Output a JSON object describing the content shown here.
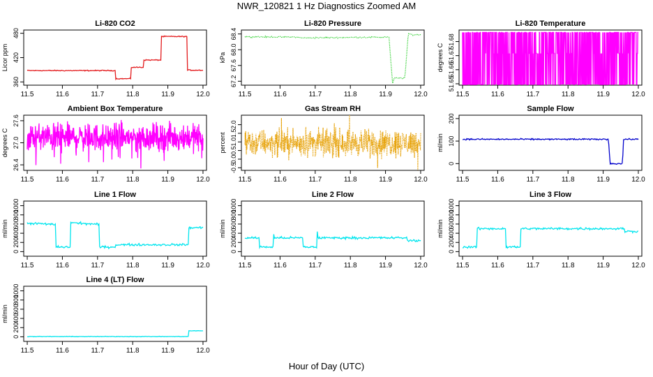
{
  "figure": {
    "title": "NWR_120821  1 Hz Diagnostics Zoomed AM",
    "xlabel": "Hour of Day (UTC)"
  },
  "chart_data": [
    {
      "type": "line",
      "title": "Li-820 CO2",
      "ylabel": "Licor ppm",
      "xlim": [
        11.49,
        12.01
      ],
      "ylim": [
        352,
        488
      ],
      "x_ticks": [
        11.5,
        11.6,
        11.7,
        11.8,
        11.9,
        12.0
      ],
      "x_tick_labels": [
        "11.5",
        "11.6",
        "11.7",
        "11.8",
        "11.9",
        "12.0"
      ],
      "y_ticks": [
        360,
        420,
        480
      ],
      "y_tick_labels": [
        "360",
        "420",
        "480"
      ],
      "color": "#e31a1c",
      "noise": 0.6,
      "step": 0.002,
      "render": "line",
      "series": [
        {
          "x": [
            11.5,
            11.75,
            11.751,
            11.795,
            11.796,
            11.83,
            11.831,
            11.88,
            11.881,
            11.955,
            11.956,
            12.0
          ],
          "y": [
            388,
            388,
            368,
            368,
            396,
            396,
            414,
            414,
            472,
            472,
            389,
            389
          ]
        }
      ]
    },
    {
      "type": "line",
      "title": "Li-820 Pressure",
      "ylabel": "kPa",
      "xlim": [
        11.49,
        12.01
      ],
      "ylim": [
        67.1,
        68.5
      ],
      "x_ticks": [
        11.5,
        11.6,
        11.7,
        11.8,
        11.9,
        12.0
      ],
      "x_tick_labels": [
        "11.5",
        "11.6",
        "11.7",
        "11.8",
        "11.9",
        "12.0"
      ],
      "y_ticks": [
        67.2,
        67.6,
        68.0,
        68.4
      ],
      "y_tick_labels": [
        "67.2",
        "67.6",
        "68.0",
        "68.4"
      ],
      "color": "#22cc22",
      "noise": 0.008,
      "step": 0.002,
      "render": "dots",
      "series": [
        {
          "x": [
            11.5,
            11.65,
            11.66,
            11.91,
            11.92,
            11.925,
            11.927,
            11.955,
            11.965,
            11.975,
            12.0
          ],
          "y": [
            68.33,
            68.32,
            68.3,
            68.32,
            67.15,
            67.28,
            67.28,
            67.28,
            68.41,
            68.38,
            68.38
          ]
        }
      ]
    },
    {
      "type": "line",
      "title": "Li-820 Temperature",
      "ylabel": "degrees C",
      "xlim": [
        11.49,
        12.01
      ],
      "ylim": [
        51.649,
        51.6882
      ],
      "x_ticks": [
        11.5,
        11.6,
        11.7,
        11.8,
        11.9,
        12.0
      ],
      "x_tick_labels": [
        "11.5",
        "11.6",
        "11.7",
        "11.8",
        "11.9",
        "12.0"
      ],
      "y_ticks": [
        51.65,
        51.66,
        51.67,
        51.68
      ],
      "y_tick_labels": [
        "51.65",
        "51.66",
        "51.67",
        "51.68"
      ],
      "color": "#ff00ff",
      "noise": 0,
      "step": 0.0008,
      "render": "toggle",
      "levels": [
        51.6495,
        51.6716,
        51.6865
      ],
      "series": [
        {
          "x": [
            11.5,
            12.0
          ],
          "y": [
            51.6716,
            51.6716
          ]
        }
      ]
    },
    {
      "type": "line",
      "title": "Ambient Box Temperature",
      "ylabel": "degrees C",
      "xlim": [
        11.49,
        12.01
      ],
      "ylim": [
        26.25,
        27.75
      ],
      "x_ticks": [
        11.5,
        11.6,
        11.7,
        11.8,
        11.9,
        12.0
      ],
      "x_tick_labels": [
        "11.5",
        "11.6",
        "11.7",
        "11.8",
        "11.9",
        "12.0"
      ],
      "y_ticks": [
        26.4,
        27.0,
        27.6
      ],
      "y_tick_labels": [
        "26.4",
        "27.0",
        "27.6"
      ],
      "color": "#ff00ff",
      "noise": 0.18,
      "step": 0.0008,
      "render": "line",
      "series": [
        {
          "x": [
            11.5,
            12.0
          ],
          "y": [
            27.15,
            27.15
          ]
        }
      ]
    },
    {
      "type": "scatter",
      "title": "Gas Stream RH",
      "ylabel": "percent",
      "xlim": [
        11.49,
        12.01
      ],
      "ylim": [
        -0.65,
        2.55
      ],
      "x_ticks": [
        11.5,
        11.6,
        11.7,
        11.8,
        11.9,
        12.0
      ],
      "x_tick_labels": [
        "11.5",
        "11.6",
        "11.7",
        "11.8",
        "11.9",
        "12.0"
      ],
      "y_ticks": [
        -0.5,
        0.0,
        0.5,
        1.0,
        1.5,
        2.0
      ],
      "y_tick_labels": [
        "-0.5",
        "0.0",
        "0.5",
        "1.0",
        "1.5",
        "2.0"
      ],
      "color": "#e69f00",
      "noise": 0.38,
      "step": 0.0008,
      "render": "dots",
      "series": [
        {
          "x": [
            11.5,
            12.0
          ],
          "y": [
            0.95,
            0.95
          ]
        }
      ]
    },
    {
      "type": "line",
      "title": "Sample Flow",
      "ylabel": "ml/min",
      "xlim": [
        11.49,
        12.01
      ],
      "ylim": [
        -30,
        215
      ],
      "x_ticks": [
        11.5,
        11.6,
        11.7,
        11.8,
        11.9,
        12.0
      ],
      "x_tick_labels": [
        "11.5",
        "11.6",
        "11.7",
        "11.8",
        "11.9",
        "12.0"
      ],
      "y_ticks": [
        0,
        100,
        200
      ],
      "y_tick_labels": [
        "0",
        "100",
        "200"
      ],
      "color": "#0000cc",
      "noise": 1.5,
      "step": 0.002,
      "render": "line",
      "series": [
        {
          "x": [
            11.5,
            11.915,
            11.92,
            11.955,
            11.958,
            12.0
          ],
          "y": [
            108,
            108,
            0,
            0,
            108,
            108
          ]
        }
      ]
    },
    {
      "type": "line",
      "title": "Line 1 Flow",
      "ylabel": "ml/min",
      "xlim": [
        11.49,
        12.01
      ],
      "ylim": [
        -100,
        1100
      ],
      "x_ticks": [
        11.5,
        11.6,
        11.7,
        11.8,
        11.9,
        12.0
      ],
      "x_tick_labels": [
        "11.5",
        "11.6",
        "11.7",
        "11.8",
        "11.9",
        "12.0"
      ],
      "y_ticks": [
        0,
        200,
        400,
        600,
        800,
        1000
      ],
      "y_tick_labels": [
        "0",
        "200",
        "400",
        "600",
        "800",
        "1000"
      ],
      "color": "#00e5ee",
      "noise": 12,
      "step": 0.002,
      "render": "line",
      "series": [
        {
          "x": [
            11.5,
            11.58,
            11.581,
            11.623,
            11.624,
            11.705,
            11.706,
            11.75,
            11.751,
            11.958,
            11.96,
            12.0
          ],
          "y": [
            620,
            590,
            100,
            100,
            630,
            590,
            100,
            100,
            150,
            150,
            520,
            520
          ]
        }
      ]
    },
    {
      "type": "line",
      "title": "Line 2 Flow",
      "ylabel": "ml/min",
      "xlim": [
        11.49,
        12.01
      ],
      "ylim": [
        -100,
        1100
      ],
      "x_ticks": [
        11.5,
        11.6,
        11.7,
        11.8,
        11.9,
        12.0
      ],
      "x_tick_labels": [
        "11.5",
        "11.6",
        "11.7",
        "11.8",
        "11.9",
        "12.0"
      ],
      "y_ticks": [
        0,
        200,
        400,
        600,
        800,
        1000
      ],
      "y_tick_labels": [
        "0",
        "200",
        "400",
        "600",
        "800",
        "1000"
      ],
      "color": "#00e5ee",
      "noise": 12,
      "step": 0.002,
      "render": "line",
      "series": [
        {
          "x": [
            11.5,
            11.54,
            11.541,
            11.58,
            11.581,
            11.583,
            11.584,
            11.665,
            11.666,
            11.705,
            11.706,
            11.708,
            11.709,
            11.96,
            11.961,
            12.0
          ],
          "y": [
            300,
            300,
            100,
            100,
            420,
            300,
            300,
            300,
            100,
            100,
            420,
            300,
            300,
            300,
            240,
            240
          ]
        }
      ]
    },
    {
      "type": "line",
      "title": "Line 3 Flow",
      "ylabel": "ml/min",
      "xlim": [
        11.49,
        12.01
      ],
      "ylim": [
        -100,
        1100
      ],
      "x_ticks": [
        11.5,
        11.6,
        11.7,
        11.8,
        11.9,
        12.0
      ],
      "x_tick_labels": [
        "11.5",
        "11.6",
        "11.7",
        "11.8",
        "11.9",
        "12.0"
      ],
      "y_ticks": [
        0,
        200,
        400,
        600,
        800,
        1000
      ],
      "y_tick_labels": [
        "0",
        "200",
        "400",
        "600",
        "800",
        "1000"
      ],
      "color": "#00e5ee",
      "noise": 12,
      "step": 0.002,
      "render": "line",
      "series": [
        {
          "x": [
            11.5,
            11.54,
            11.541,
            11.623,
            11.624,
            11.665,
            11.666,
            11.96,
            11.961,
            12.0
          ],
          "y": [
            100,
            100,
            500,
            500,
            100,
            100,
            500,
            500,
            440,
            440
          ]
        }
      ]
    },
    {
      "type": "line",
      "title": "Line 4 (LT) Flow",
      "ylabel": "ml/min",
      "xlim": [
        11.49,
        12.01
      ],
      "ylim": [
        -100,
        1100
      ],
      "x_ticks": [
        11.5,
        11.6,
        11.7,
        11.8,
        11.9,
        12.0
      ],
      "x_tick_labels": [
        "11.5",
        "11.6",
        "11.7",
        "11.8",
        "11.9",
        "12.0"
      ],
      "y_ticks": [
        0,
        200,
        400,
        600,
        800,
        1000
      ],
      "y_tick_labels": [
        "0",
        "200",
        "400",
        "600",
        "800",
        "1000"
      ],
      "color": "#00e5ee",
      "noise": 3,
      "step": 0.002,
      "render": "line",
      "series": [
        {
          "x": [
            11.5,
            11.958,
            11.959,
            12.0
          ],
          "y": [
            5,
            5,
            130,
            130
          ]
        }
      ]
    }
  ]
}
